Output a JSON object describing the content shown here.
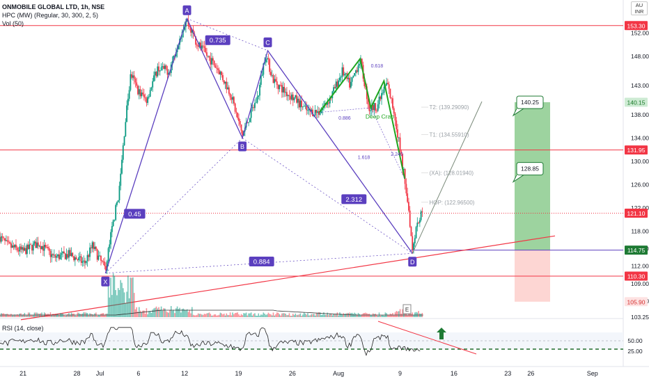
{
  "chart_data": {
    "type": "candlestick",
    "symbol_line": "ONMOBILE GLOBAL LTD, 1h, NSE",
    "indicator_line": "HPC (MW) (Regular, 30, 300, 2, 5)",
    "volume_line": "Vol (50)",
    "rsi_line": "RSI (14, close)",
    "currency_badge": [
      "AU",
      "INR"
    ],
    "ylim": [
      103.25,
      156.5
    ],
    "rsi_ylim": [
      0,
      100
    ],
    "y_ticks": [
      152.0,
      148.0,
      143.0,
      138.0,
      134.0,
      130.0,
      126.0,
      122.0,
      118.0,
      115.0,
      112.0,
      109.0,
      106.0,
      103.25
    ],
    "rsi_ticks": [
      50.0,
      25.0
    ],
    "x_ticks": [
      {
        "label": "21",
        "day": 0
      },
      {
        "label": "28",
        "day": 7
      },
      {
        "label": "Jul",
        "day": 10
      },
      {
        "label": "6",
        "day": 15
      },
      {
        "label": "12",
        "day": 21
      },
      {
        "label": "19",
        "day": 28
      },
      {
        "label": "26",
        "day": 35
      },
      {
        "label": "Aug",
        "day": 41
      },
      {
        "label": "9",
        "day": 49
      },
      {
        "label": "16",
        "day": 56
      },
      {
        "label": "23",
        "day": 63
      },
      {
        "label": "26",
        "day": 66
      },
      {
        "label": "Sep",
        "day": 74
      }
    ],
    "x_range_days": [
      -3,
      78
    ],
    "price_series": [
      {
        "day": -3,
        "price": 117.0
      },
      {
        "day": -2,
        "price": 115.5
      },
      {
        "day": 0,
        "price": 114.5
      },
      {
        "day": 2,
        "price": 116.0
      },
      {
        "day": 4,
        "price": 113.5
      },
      {
        "day": 6,
        "price": 114.0
      },
      {
        "day": 8,
        "price": 112.5
      },
      {
        "day": 9,
        "price": 115.5
      },
      {
        "day": 10,
        "price": 113.0
      },
      {
        "day": 10.7,
        "price": 111.5
      },
      {
        "day": 11.5,
        "price": 118.0
      },
      {
        "day": 12.5,
        "price": 125.0
      },
      {
        "day": 13.3,
        "price": 137.0
      },
      {
        "day": 14.0,
        "price": 145.0
      },
      {
        "day": 15.0,
        "price": 142.0
      },
      {
        "day": 16.0,
        "price": 140.5
      },
      {
        "day": 17.5,
        "price": 146.0
      },
      {
        "day": 19.0,
        "price": 145.5
      },
      {
        "day": 20.5,
        "price": 152.0
      },
      {
        "day": 21.2,
        "price": 154.3
      },
      {
        "day": 22.5,
        "price": 150.5
      },
      {
        "day": 24.0,
        "price": 148.0
      },
      {
        "day": 25.5,
        "price": 145.5
      },
      {
        "day": 27.0,
        "price": 141.5
      },
      {
        "day": 28.5,
        "price": 134.5
      },
      {
        "day": 29.5,
        "price": 138.0
      },
      {
        "day": 30.5,
        "price": 141.0
      },
      {
        "day": 31.5,
        "price": 148.5
      },
      {
        "day": 32.5,
        "price": 144.0
      },
      {
        "day": 34.0,
        "price": 142.0
      },
      {
        "day": 35.5,
        "price": 140.5
      },
      {
        "day": 37.0,
        "price": 138.5
      },
      {
        "day": 38.5,
        "price": 138.5
      },
      {
        "day": 40.0,
        "price": 141.0
      },
      {
        "day": 41.5,
        "price": 145.5
      },
      {
        "day": 42.5,
        "price": 143.0
      },
      {
        "day": 43.8,
        "price": 147.5
      },
      {
        "day": 45.0,
        "price": 139.0
      },
      {
        "day": 46.0,
        "price": 139.5
      },
      {
        "day": 47.3,
        "price": 143.5
      },
      {
        "day": 48.3,
        "price": 138.0
      },
      {
        "day": 49.0,
        "price": 132.0
      },
      {
        "day": 49.6,
        "price": 127.0
      },
      {
        "day": 50.1,
        "price": 122.0
      },
      {
        "day": 50.6,
        "price": 115.0
      },
      {
        "day": 51.1,
        "price": 119.0
      },
      {
        "day": 51.8,
        "price": 121.1
      }
    ],
    "horizontal_levels": [
      {
        "price": 153.3,
        "label": "153.30",
        "style": "solid",
        "color": "#f23645"
      },
      {
        "price": 131.95,
        "label": "131.95",
        "style": "solid",
        "color": "#f23645"
      },
      {
        "price": 121.1,
        "label": "121.10",
        "style": "dotted",
        "color": "#f23645"
      },
      {
        "price": 110.3,
        "label": "110.30",
        "style": "solid",
        "color": "#f23645"
      }
    ],
    "price_labels": [
      {
        "price": 140.15,
        "label": "140.15",
        "bg": "#cdebd3",
        "fg": "#1b7a2a"
      },
      {
        "price": 114.75,
        "label": "114.75",
        "bg": "#1e7a34",
        "fg": "#ffffff"
      },
      {
        "price": 105.9,
        "label": "105.90",
        "bg": "#fde2e2",
        "fg": "#d32f2f"
      }
    ],
    "xabcd_points": [
      {
        "label": "X",
        "day": 10.7,
        "price": 110.8
      },
      {
        "label": "A",
        "day": 21.3,
        "price": 154.5
      },
      {
        "label": "B",
        "day": 28.5,
        "price": 134.0
      },
      {
        "label": "C",
        "day": 31.8,
        "price": 149.0
      },
      {
        "label": "D",
        "day": 50.6,
        "price": 114.2
      }
    ],
    "ratios": [
      {
        "text": "0.735",
        "day": 25.3,
        "price": 150.8
      },
      {
        "text": "0.45",
        "day": 14.5,
        "price": 121.0
      },
      {
        "text": "2.312",
        "day": 43.0,
        "price": 123.5
      },
      {
        "text": "0.884",
        "day": 31.0,
        "price": 112.8
      }
    ],
    "targets": [
      {
        "text": "T2: (139.29090)",
        "day": 51.8,
        "price": 139.3
      },
      {
        "text": "T1: (134.55910)",
        "day": 51.8,
        "price": 134.6
      },
      {
        "text": "(XA): (128.01940)",
        "day": 51.8,
        "price": 128.0
      },
      {
        "text": "HOP: (122.96500)",
        "day": 51.8,
        "price": 122.97
      }
    ],
    "small_ratios": [
      {
        "text": "0.618",
        "day": 45.2,
        "price": 146.5
      },
      {
        "text": "0.886",
        "day": 41.0,
        "price": 137.5
      },
      {
        "text": "1.618",
        "day": 43.5,
        "price": 130.8
      },
      {
        "text": "2.240",
        "day": 47.8,
        "price": 131.3
      }
    ],
    "pattern_label": {
      "text": "Deep Crab",
      "day": 44.5,
      "price": 137.7
    },
    "callouts": [
      {
        "text": "140.25",
        "price": 140.25
      },
      {
        "text": "128.85",
        "price": 128.85
      }
    ],
    "position": {
      "entry": 114.75,
      "target": 140.15,
      "stop": 105.9
    },
    "event_marker": "E",
    "colors": {
      "up": "#089981",
      "down": "#f23645",
      "pattern": "#5b3fbf",
      "harmonic": "#1ea51e",
      "level": "#f23645"
    }
  }
}
